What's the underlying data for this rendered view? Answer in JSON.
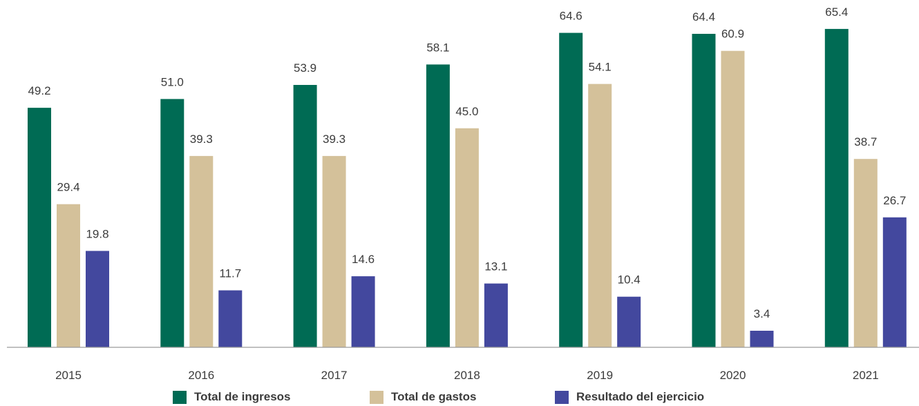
{
  "colors": {
    "ingresos": "#006b54",
    "gastos": "#d4c19a",
    "resultado": "#43489e",
    "axis": "#9a9a9a",
    "text": "#3b3b3b"
  },
  "legend": {
    "items": [
      {
        "label": "Total de ingresos",
        "color": "#006b54"
      },
      {
        "label": "Total de gastos",
        "color": "#d4c19a"
      },
      {
        "label": "Resultado del ejercicio",
        "color": "#43489e"
      }
    ]
  },
  "chart_data": {
    "type": "bar",
    "title": "",
    "xlabel": "",
    "ylabel": "",
    "grid": false,
    "legend_position": "bottom",
    "ylim": [
      0,
      70
    ],
    "categories": [
      "2015",
      "2016",
      "2017",
      "2018",
      "2019",
      "2020",
      "2021"
    ],
    "series": [
      {
        "name": "Total de ingresos",
        "color": "#006b54",
        "values": [
          49.2,
          51.0,
          53.9,
          58.1,
          64.6,
          64.4,
          65.4
        ]
      },
      {
        "name": "Total de gastos",
        "color": "#d4c19a",
        "values": [
          29.4,
          39.3,
          39.3,
          45.0,
          54.1,
          60.9,
          38.7
        ]
      },
      {
        "name": "Resultado del ejercicio",
        "color": "#43489e",
        "values": [
          19.8,
          11.7,
          14.6,
          13.1,
          10.4,
          3.4,
          26.7
        ]
      }
    ]
  }
}
